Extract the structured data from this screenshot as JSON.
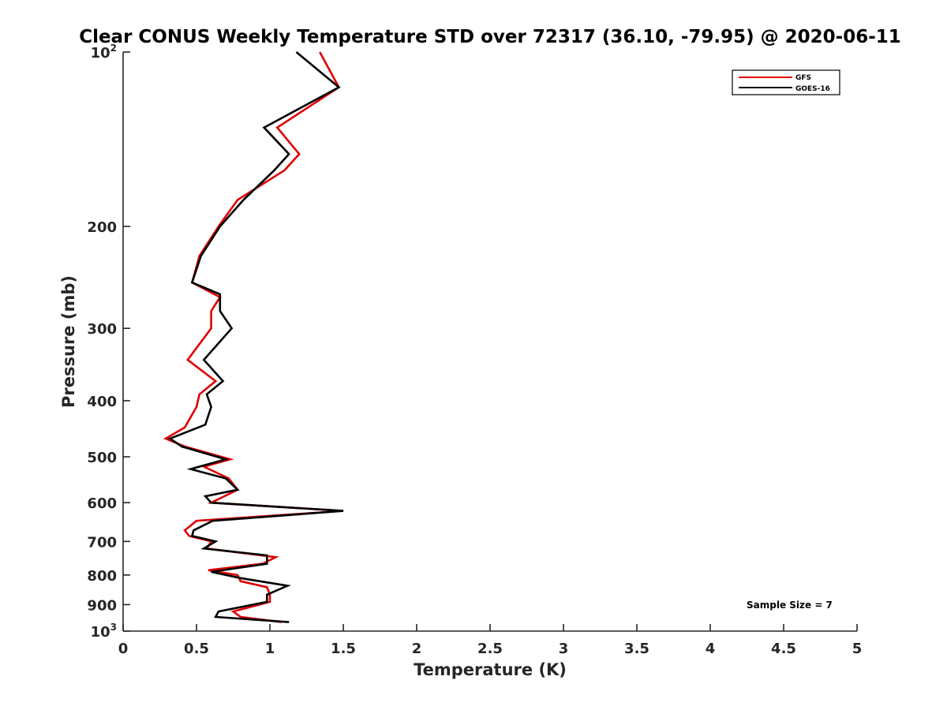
{
  "chart_data": {
    "type": "line",
    "title": "Clear CONUS Weekly Temperature STD over 72317 (36.10, -79.95) @ 2020-06-11",
    "xlabel": "Temperature (K)",
    "ylabel": "Pressure (mb)",
    "xlim": [
      0,
      5
    ],
    "ylim": [
      100,
      1000
    ],
    "y_scale": "log",
    "y_reversed": true,
    "x_ticks": [
      "0",
      "0.5",
      "1",
      "1.5",
      "2",
      "2.5",
      "3",
      "3.5",
      "4",
      "4.5",
      "5"
    ],
    "y_ticks": [
      {
        "value": 100,
        "base": "10",
        "exp": "2"
      },
      {
        "value": 200,
        "label": "200"
      },
      {
        "value": 300,
        "label": "300"
      },
      {
        "value": 400,
        "label": "400"
      },
      {
        "value": 500,
        "label": "500"
      },
      {
        "value": 600,
        "label": "600"
      },
      {
        "value": 700,
        "label": "700"
      },
      {
        "value": 800,
        "label": "800"
      },
      {
        "value": 900,
        "label": "900"
      },
      {
        "value": 1000,
        "base": "10",
        "exp": "3"
      }
    ],
    "grid": false,
    "legend_position": "top-right",
    "annotation": "Sample Size = 7",
    "series": [
      {
        "name": "GFS",
        "color": "#e00000",
        "points": [
          [
            1.34,
            100
          ],
          [
            1.47,
            115
          ],
          [
            1.05,
            135
          ],
          [
            1.2,
            150
          ],
          [
            1.1,
            160
          ],
          [
            0.78,
            180
          ],
          [
            0.65,
            200
          ],
          [
            0.52,
            225
          ],
          [
            0.47,
            250
          ],
          [
            0.66,
            265
          ],
          [
            0.6,
            280
          ],
          [
            0.6,
            300
          ],
          [
            0.44,
            340
          ],
          [
            0.63,
            370
          ],
          [
            0.52,
            390
          ],
          [
            0.5,
            410
          ],
          [
            0.42,
            445
          ],
          [
            0.29,
            465
          ],
          [
            0.42,
            480
          ],
          [
            0.73,
            505
          ],
          [
            0.55,
            520
          ],
          [
            0.72,
            545
          ],
          [
            0.78,
            570
          ],
          [
            0.6,
            600
          ],
          [
            1.5,
            620
          ],
          [
            0.5,
            645
          ],
          [
            0.42,
            670
          ],
          [
            0.45,
            685
          ],
          [
            0.6,
            700
          ],
          [
            0.57,
            720
          ],
          [
            1.04,
            745
          ],
          [
            0.95,
            765
          ],
          [
            0.58,
            785
          ],
          [
            0.78,
            800
          ],
          [
            0.8,
            820
          ],
          [
            0.98,
            840
          ],
          [
            1.0,
            865
          ],
          [
            1.0,
            890
          ],
          [
            0.75,
            925
          ],
          [
            0.8,
            945
          ],
          [
            1.08,
            965
          ]
        ]
      },
      {
        "name": "GOES-16",
        "color": "#000000",
        "points": [
          [
            1.18,
            100
          ],
          [
            1.47,
            115
          ],
          [
            0.96,
            135
          ],
          [
            1.13,
            150
          ],
          [
            1.03,
            160
          ],
          [
            0.82,
            180
          ],
          [
            0.66,
            200
          ],
          [
            0.53,
            225
          ],
          [
            0.47,
            250
          ],
          [
            0.66,
            262
          ],
          [
            0.66,
            280
          ],
          [
            0.74,
            300
          ],
          [
            0.55,
            340
          ],
          [
            0.68,
            370
          ],
          [
            0.57,
            390
          ],
          [
            0.6,
            410
          ],
          [
            0.56,
            440
          ],
          [
            0.32,
            465
          ],
          [
            0.4,
            480
          ],
          [
            0.7,
            505
          ],
          [
            0.46,
            525
          ],
          [
            0.7,
            545
          ],
          [
            0.78,
            570
          ],
          [
            0.56,
            585
          ],
          [
            0.6,
            600
          ],
          [
            1.5,
            620
          ],
          [
            0.61,
            645
          ],
          [
            0.48,
            670
          ],
          [
            0.47,
            685
          ],
          [
            0.63,
            700
          ],
          [
            0.55,
            720
          ],
          [
            0.98,
            740
          ],
          [
            0.98,
            765
          ],
          [
            0.6,
            790
          ],
          [
            0.8,
            810
          ],
          [
            1.12,
            835
          ],
          [
            0.98,
            865
          ],
          [
            0.98,
            890
          ],
          [
            0.65,
            925
          ],
          [
            0.63,
            945
          ],
          [
            1.13,
            965
          ]
        ]
      }
    ]
  }
}
